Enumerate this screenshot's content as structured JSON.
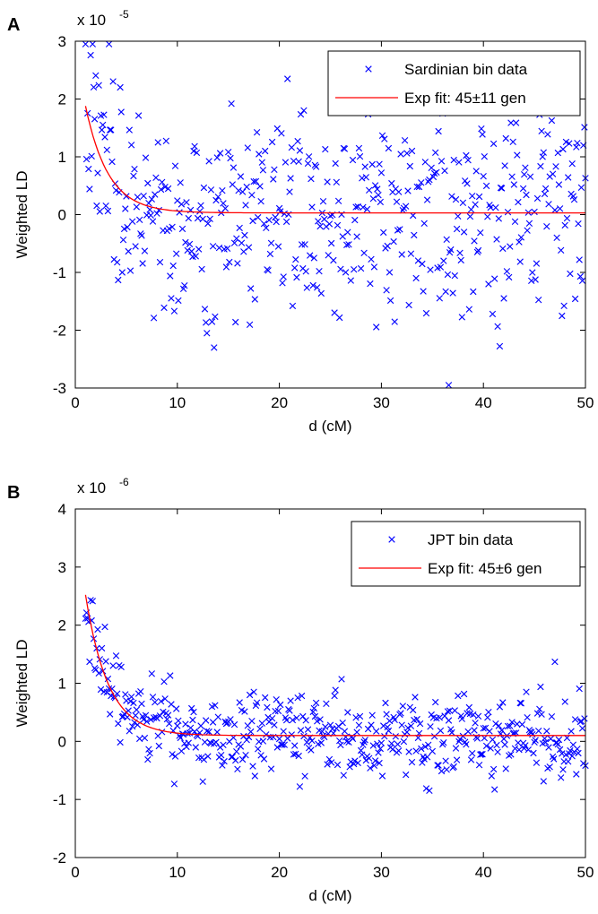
{
  "chart_data": [
    {
      "panel_label": "A",
      "type": "scatter",
      "y_multiplier": "x 10",
      "y_exponent": "-5",
      "y_scale": 1e-05,
      "xlabel": "d (cM)",
      "ylabel": "Weighted LD",
      "xlim": [
        0,
        50
      ],
      "ylim": [
        -3,
        3
      ],
      "xticks": [
        "0",
        "10",
        "20",
        "30",
        "40",
        "50"
      ],
      "yticks": [
        "3",
        "2",
        "1",
        "0",
        "-1",
        "-2",
        "-3"
      ],
      "grid": false,
      "legend_position": "top-right",
      "series": [
        {
          "name": "Sardinian bin data",
          "marker": "x",
          "color": "#0000ff",
          "generator": {
            "noise_sd": 0.9,
            "noise_mult": 0.1,
            "cap": 2.95,
            "seed": 7
          }
        },
        {
          "name": "Exp fit: 45±11 gen",
          "type": "line",
          "color": "#ff0000",
          "model": {
            "amplitude": 2.9,
            "rate_per_cM": 0.45,
            "offset": 0.03
          },
          "x": [
            1,
            2,
            3,
            4,
            5,
            6,
            7,
            8,
            9,
            10,
            15,
            20,
            30,
            40,
            50
          ],
          "y": [
            2.22,
            1.44,
            0.93,
            0.6,
            0.4,
            0.26,
            0.18,
            0.12,
            0.08,
            0.06,
            0.03,
            0.03,
            0.03,
            0.03,
            0.03
          ]
        }
      ]
    },
    {
      "panel_label": "B",
      "type": "scatter",
      "y_multiplier": "x 10",
      "y_exponent": "-6",
      "y_scale": 1e-06,
      "xlabel": "d (cM)",
      "ylabel": "Weighted LD",
      "xlim": [
        0,
        50
      ],
      "ylim": [
        -2,
        4
      ],
      "xticks": [
        "0",
        "10",
        "20",
        "30",
        "40",
        "50"
      ],
      "yticks": [
        "4",
        "3",
        "2",
        "1",
        "0",
        "-1",
        "-2"
      ],
      "grid": false,
      "legend_position": "top-right",
      "series": [
        {
          "name": "JPT bin data",
          "marker": "x",
          "color": "#0000ff",
          "generator": {
            "noise_sd": 0.38,
            "noise_mult": 0.08,
            "cap": 3.45,
            "seed": 19
          }
        },
        {
          "name": "Exp fit: 45±6 gen",
          "type": "line",
          "color": "#ff0000",
          "model": {
            "amplitude": 3.8,
            "rate_per_cM": 0.45,
            "offset": 0.1
          },
          "x": [
            1,
            2,
            3,
            4,
            5,
            6,
            7,
            8,
            9,
            10,
            15,
            20,
            30,
            40,
            50
          ],
          "y": [
            2.46,
            1.6,
            1.05,
            0.7,
            0.48,
            0.35,
            0.26,
            0.2,
            0.17,
            0.14,
            0.1,
            0.1,
            0.1,
            0.1,
            0.1
          ]
        }
      ]
    }
  ]
}
